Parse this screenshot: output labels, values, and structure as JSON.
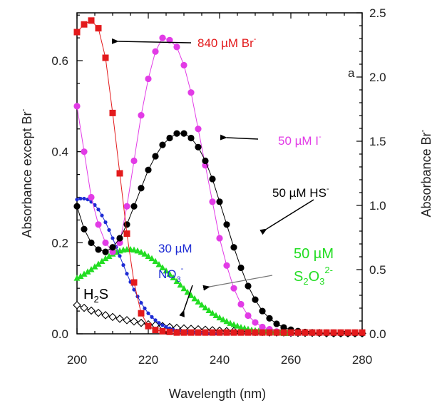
{
  "chart_data": {
    "type": "scatter",
    "xlabel": "Wavelength (nm)",
    "ylabel_left": "Absorbance except Br",
    "ylabel_left_sup": "-",
    "ylabel_right": "Absorbance Br",
    "ylabel_right_sup": "-",
    "panel_label": "a",
    "xlim": [
      200,
      280
    ],
    "ylim_left": [
      0,
      0.705
    ],
    "ylim_right": [
      0,
      2.5
    ],
    "x_ticks": [
      200,
      220,
      240,
      260,
      280
    ],
    "x_tick_labels": [
      "200",
      "220",
      "240",
      "260",
      "280"
    ],
    "y_left_ticks": [
      0,
      0.2,
      0.4,
      0.6
    ],
    "y_left_tick_labels": [
      "0.0",
      "0.2",
      "0.4",
      "0.6"
    ],
    "y_right_ticks": [
      0,
      0.5,
      1.0,
      1.5,
      2.0,
      2.5
    ],
    "y_right_tick_labels": [
      "0.0",
      "0.5",
      "1.0",
      "1.5",
      "2.0",
      "2.5"
    ],
    "grid": false,
    "series": [
      {
        "axis": "right",
        "color": "#e31a1c",
        "marker": "square",
        "x": [
          200,
          202,
          204,
          206,
          208,
          210,
          212,
          214,
          216,
          218,
          220,
          222,
          224,
          226,
          228,
          230,
          232,
          234,
          236,
          238,
          240,
          242,
          244,
          246,
          248,
          250,
          252,
          254,
          256,
          258,
          260,
          262,
          264,
          266,
          268,
          270,
          272,
          274,
          276,
          278,
          280
        ],
        "y": [
          2.35,
          2.41,
          2.44,
          2.38,
          2.15,
          1.72,
          1.25,
          0.78,
          0.4,
          0.16,
          0.06,
          0.03,
          0.02,
          0.015,
          0.01,
          0.01,
          0.01,
          0.01,
          0.01,
          0.01,
          0.01,
          0.01,
          0.01,
          0.01,
          0.01,
          0.01,
          0.01,
          0.01,
          0.01,
          0.01,
          0.01,
          0.01,
          0.01,
          0.01,
          0.01,
          0.01,
          0.01,
          0.01,
          0.01,
          0.01,
          0.01
        ]
      },
      {
        "axis": "left",
        "color": "#e23be6",
        "marker": "circle",
        "x": [
          200,
          202,
          204,
          206,
          208,
          210,
          212,
          214,
          216,
          218,
          220,
          222,
          224,
          226,
          228,
          230,
          232,
          234,
          236,
          238,
          240,
          242,
          244,
          246,
          248,
          250,
          252,
          254,
          256,
          258,
          260
        ],
        "y": [
          0.5,
          0.4,
          0.3,
          0.24,
          0.2,
          0.18,
          0.2,
          0.28,
          0.38,
          0.48,
          0.56,
          0.62,
          0.65,
          0.645,
          0.63,
          0.59,
          0.53,
          0.45,
          0.37,
          0.29,
          0.21,
          0.15,
          0.1,
          0.065,
          0.04,
          0.025,
          0.015,
          0.01,
          0.005,
          0.003,
          0.002
        ]
      },
      {
        "axis": "left",
        "color": "#000000",
        "marker": "circle",
        "x": [
          200,
          202,
          204,
          206,
          208,
          210,
          212,
          214,
          216,
          218,
          220,
          222,
          224,
          226,
          228,
          230,
          232,
          234,
          236,
          238,
          240,
          242,
          244,
          246,
          248,
          250,
          252,
          254,
          256,
          258,
          260,
          262,
          264,
          266,
          268,
          270,
          272,
          274,
          276,
          278,
          280
        ],
        "y": [
          0.28,
          0.23,
          0.2,
          0.185,
          0.18,
          0.19,
          0.21,
          0.24,
          0.28,
          0.32,
          0.36,
          0.39,
          0.415,
          0.43,
          0.44,
          0.44,
          0.43,
          0.41,
          0.38,
          0.34,
          0.29,
          0.24,
          0.19,
          0.145,
          0.105,
          0.075,
          0.05,
          0.034,
          0.022,
          0.014,
          0.009,
          0.006,
          0.004,
          0.003,
          0.002,
          0.002,
          0.001,
          0.001,
          0.001,
          0.001,
          0.001
        ]
      },
      {
        "axis": "left",
        "color": "#1d2bd4",
        "marker": "small-circle",
        "x": [
          200,
          201,
          202,
          203,
          204,
          205,
          206,
          207,
          208,
          209,
          210,
          211,
          212,
          213,
          214,
          215,
          216,
          217,
          218,
          219,
          220,
          221,
          222,
          223,
          224,
          225,
          226,
          227,
          228,
          229,
          230,
          231,
          232,
          233,
          234,
          235,
          236,
          237,
          238,
          239,
          240
        ],
        "y": [
          0.295,
          0.297,
          0.297,
          0.295,
          0.29,
          0.283,
          0.273,
          0.26,
          0.245,
          0.228,
          0.21,
          0.191,
          0.171,
          0.151,
          0.132,
          0.114,
          0.097,
          0.082,
          0.068,
          0.056,
          0.045,
          0.037,
          0.03,
          0.024,
          0.019,
          0.015,
          0.012,
          0.009,
          0.007,
          0.006,
          0.005,
          0.004,
          0.003,
          0.003,
          0.002,
          0.002,
          0.002,
          0.001,
          0.001,
          0.001,
          0.001
        ]
      },
      {
        "axis": "left",
        "color": "#22dd22",
        "marker": "triangle",
        "x": [
          200,
          201,
          202,
          203,
          204,
          205,
          206,
          207,
          208,
          209,
          210,
          211,
          212,
          213,
          214,
          215,
          216,
          217,
          218,
          219,
          220,
          221,
          222,
          223,
          224,
          225,
          226,
          227,
          228,
          229,
          230,
          231,
          232,
          233,
          234,
          235,
          236,
          237,
          238,
          239,
          240,
          241,
          242,
          243,
          244,
          245,
          246,
          247,
          248,
          249,
          250,
          251,
          252,
          253,
          254,
          255,
          256,
          257,
          258,
          259,
          260
        ],
        "y": [
          0.122,
          0.126,
          0.131,
          0.136,
          0.141,
          0.147,
          0.153,
          0.159,
          0.165,
          0.17,
          0.175,
          0.179,
          0.182,
          0.184,
          0.185,
          0.185,
          0.184,
          0.182,
          0.179,
          0.175,
          0.17,
          0.165,
          0.159,
          0.152,
          0.145,
          0.138,
          0.131,
          0.123,
          0.115,
          0.107,
          0.099,
          0.091,
          0.084,
          0.077,
          0.07,
          0.063,
          0.057,
          0.051,
          0.045,
          0.04,
          0.035,
          0.031,
          0.027,
          0.023,
          0.02,
          0.017,
          0.014,
          0.012,
          0.01,
          0.008,
          0.007,
          0.006,
          0.005,
          0.004,
          0.003,
          0.003,
          0.002,
          0.002,
          0.001,
          0.001,
          0.001
        ]
      },
      {
        "axis": "left",
        "color": "#000000",
        "marker": "open-diamond",
        "x": [
          200,
          202,
          204,
          206,
          208,
          210,
          212,
          214,
          216,
          218,
          220,
          222,
          224,
          226,
          228,
          230,
          232,
          234,
          236,
          238,
          240,
          242,
          244,
          246,
          248,
          250,
          252,
          254,
          256,
          258,
          260,
          262,
          264,
          266,
          268,
          270,
          272,
          274,
          276,
          278,
          280
        ],
        "y": [
          0.063,
          0.057,
          0.051,
          0.046,
          0.041,
          0.037,
          0.033,
          0.03,
          0.027,
          0.024,
          0.021,
          0.019,
          0.017,
          0.015,
          0.013,
          0.012,
          0.011,
          0.01,
          0.009,
          0.008,
          0.007,
          0.006,
          0.006,
          0.005,
          0.005,
          0.004,
          0.004,
          0.003,
          0.003,
          0.003,
          0.002,
          0.002,
          0.002,
          0.002,
          0.002,
          0.001,
          0.001,
          0.001,
          0.001,
          0.001,
          0.001
        ]
      }
    ],
    "annotations": {
      "br": {
        "main": "840 µM Br",
        "sup": "-",
        "color": "#e31a1c"
      },
      "iodide": {
        "main": "50 µM I",
        "sup": "-",
        "color": "#e23be6"
      },
      "hs": {
        "main": "50 µM HS",
        "sup": "-",
        "color": "#000000"
      },
      "no3_line1": {
        "main": "30 µM",
        "color": "#1d2bd4"
      },
      "no3_line2": {
        "main": "NO",
        "sub": "3",
        "sup": "-",
        "color": "#1d2bd4"
      },
      "s2o3_line1": {
        "main": "50 µM",
        "color": "#22dd22"
      },
      "s2o3_line2": {
        "main": "S",
        "sub1": "2",
        "mid": "O",
        "sub2": "3",
        "sup": "2-",
        "color": "#22dd22"
      },
      "h2s": {
        "main": "H",
        "sub": "2",
        "tail": "S",
        "color": "#000000"
      }
    }
  }
}
